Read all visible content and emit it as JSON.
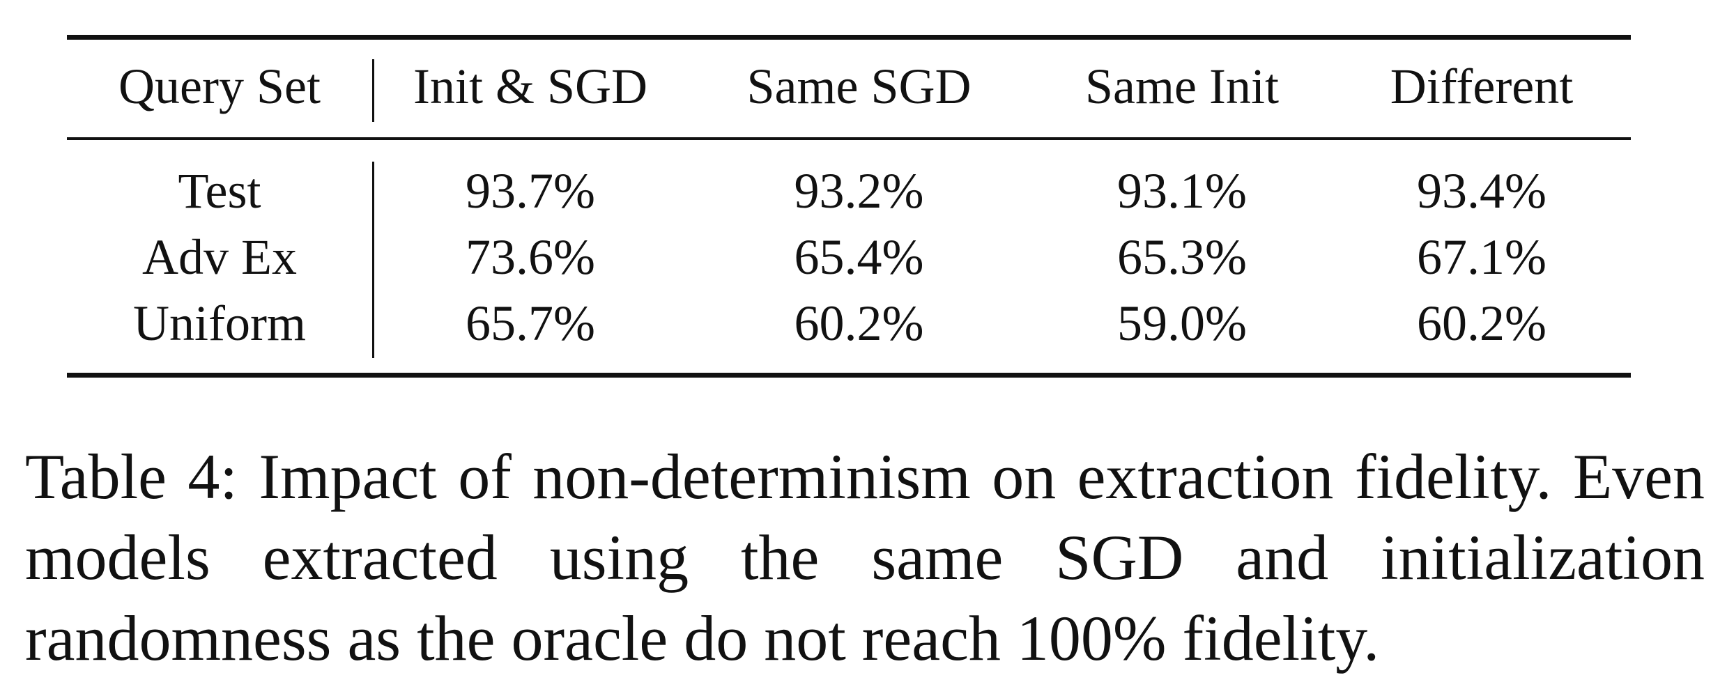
{
  "table": {
    "columns": [
      "Query Set",
      "Init & SGD",
      "Same SGD",
      "Same Init",
      "Different"
    ],
    "rows": [
      [
        "Test",
        "93.7%",
        "93.2%",
        "93.1%",
        "93.4%"
      ],
      [
        "Adv Ex",
        "73.6%",
        "65.4%",
        "65.3%",
        "67.1%"
      ],
      [
        "Uniform",
        "65.7%",
        "60.2%",
        "59.0%",
        "60.2%"
      ]
    ]
  },
  "caption": "Table 4: Impact of non-determinism on extraction fidelity. Even models extracted using the same SGD and initialization randomness as the oracle do not reach 100% fidelity."
}
